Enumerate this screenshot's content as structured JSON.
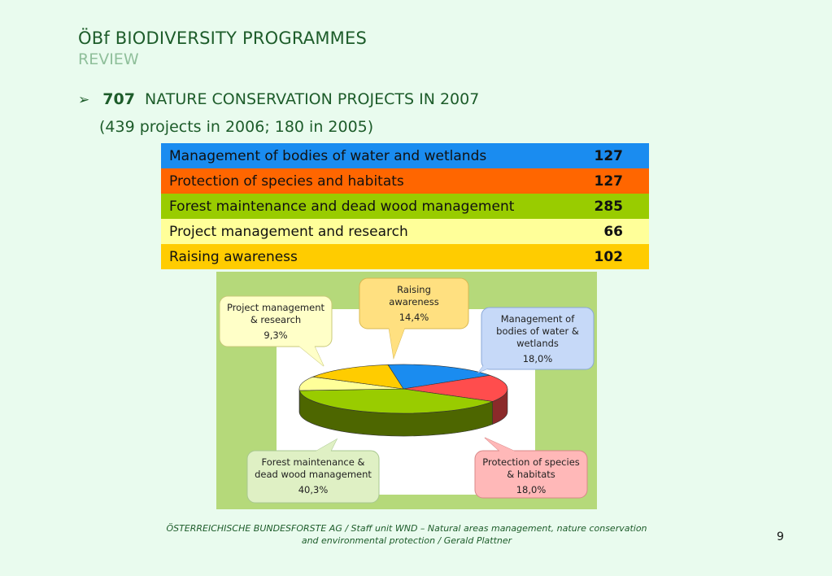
{
  "header": {
    "title": "ÖBf BIODIVERSITY PROGRAMMES",
    "subtitle": "REVIEW"
  },
  "bullet": {
    "number": "707",
    "text": "NATURE CONSERVATION PROJECTS IN 2007",
    "sub": "(439 projects in 2006; 180 in 2005)"
  },
  "colors": {
    "water": "#1a8cf0",
    "species": "#ff6600",
    "forest": "#99cc00",
    "management": "#ffff99",
    "awareness": "#ffcc00"
  },
  "table": [
    {
      "label": "Management of bodies of water and wetlands",
      "value": "127"
    },
    {
      "label": "Protection of species and habitats",
      "value": "127"
    },
    {
      "label": "Forest maintenance and dead wood management",
      "value": "285"
    },
    {
      "label": "Project management and research",
      "value": "66"
    },
    {
      "label": "Raising awareness",
      "value": "102"
    }
  ],
  "chart_data": {
    "type": "pie",
    "slices": [
      {
        "label": "Management of bodies of water & wetlands",
        "value": 18.0,
        "display": "18,0%"
      },
      {
        "label": "Protection of species & habitats",
        "value": 18.0,
        "display": "18,0%"
      },
      {
        "label": "Forest maintenance & dead wood management",
        "value": 40.3,
        "display": "40,3%"
      },
      {
        "label": "Project management & research",
        "value": 9.3,
        "display": "9,3%"
      },
      {
        "label": "Raising awareness",
        "value": 14.4,
        "display": "14,4%"
      }
    ]
  },
  "footer": {
    "line1": "ÖSTERREICHISCHE BUNDESFORSTE AG / Staff unit WND – Natural areas management, nature conservation",
    "line2": "and environmental protection / Gerald Plattner",
    "page": "9"
  }
}
